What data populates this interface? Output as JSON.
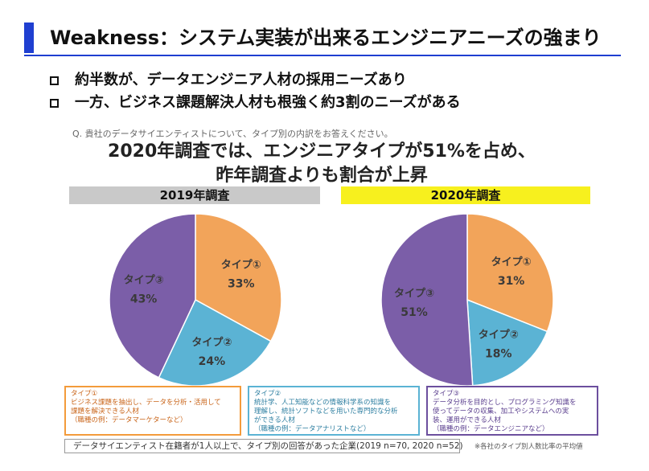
{
  "header": {
    "title": "Weakness：システム実装が出来るエンジニアニーズの強まり",
    "accent_color": "#1f3fd1"
  },
  "bullets": [
    "約半数が、データエンジニア人材の採用ニーズあり",
    "一方、ビジネス課題解決人材も根強く約3割のニーズがある"
  ],
  "question": "Q. 貴社のデータサイエンティストについて、タイプ別の内訳をお答えください。",
  "headline": {
    "line1": "2020年調査では、エンジニアタイプが51%を占め、",
    "line2": "昨年調査よりも割合が上昇"
  },
  "chart_data": [
    {
      "type": "pie",
      "title": "2019年調査",
      "title_bg": "#c9c9c9",
      "slices": [
        {
          "label": "タイプ①",
          "value": 33,
          "display": "33%",
          "color": "#f2a45a"
        },
        {
          "label": "タイプ②",
          "value": 24,
          "display": "24%",
          "color": "#5bb3d4"
        },
        {
          "label": "タイプ③",
          "value": 43,
          "display": "43%",
          "color": "#7b5ea8"
        }
      ]
    },
    {
      "type": "pie",
      "title": "2020年調査",
      "title_bg": "#f7f01e",
      "slices": [
        {
          "label": "タイプ①",
          "value": 31,
          "display": "31%",
          "color": "#f2a45a"
        },
        {
          "label": "タイプ②",
          "value": 18,
          "display": "18%",
          "color": "#5bb3d4"
        },
        {
          "label": "タイプ③",
          "value": 51,
          "display": "51%",
          "color": "#7b5ea8"
        }
      ]
    }
  ],
  "descriptions": [
    {
      "title": "タイプ①",
      "lines": [
        "ビジネス課題を抽出し、データを分析・活用して",
        "課題を解決できる人材",
        "（職種の例：データマーケターなど）"
      ]
    },
    {
      "title": "タイプ②",
      "lines": [
        "統計学、人工知能などの情報科学系の知識を",
        "理解し、統計ソフトなどを用いた専門的な分析",
        "ができる人材",
        "（職種の例：データアナリストなど）"
      ]
    },
    {
      "title": "タイプ③",
      "lines": [
        "データ分析を目的とし、プログラミング知識を",
        "使ってデータの収集、加工やシステムへの実",
        "装、運用ができる人材",
        "（職種の例：データエンジニアなど）"
      ]
    }
  ],
  "footnote": "データサイエンティスト在籍者が1人以上で、タイプ別の回答があった企業(2019 n=70, 2020 n=52)",
  "footnote_right": "※各社のタイプ別人数比率の平均値"
}
